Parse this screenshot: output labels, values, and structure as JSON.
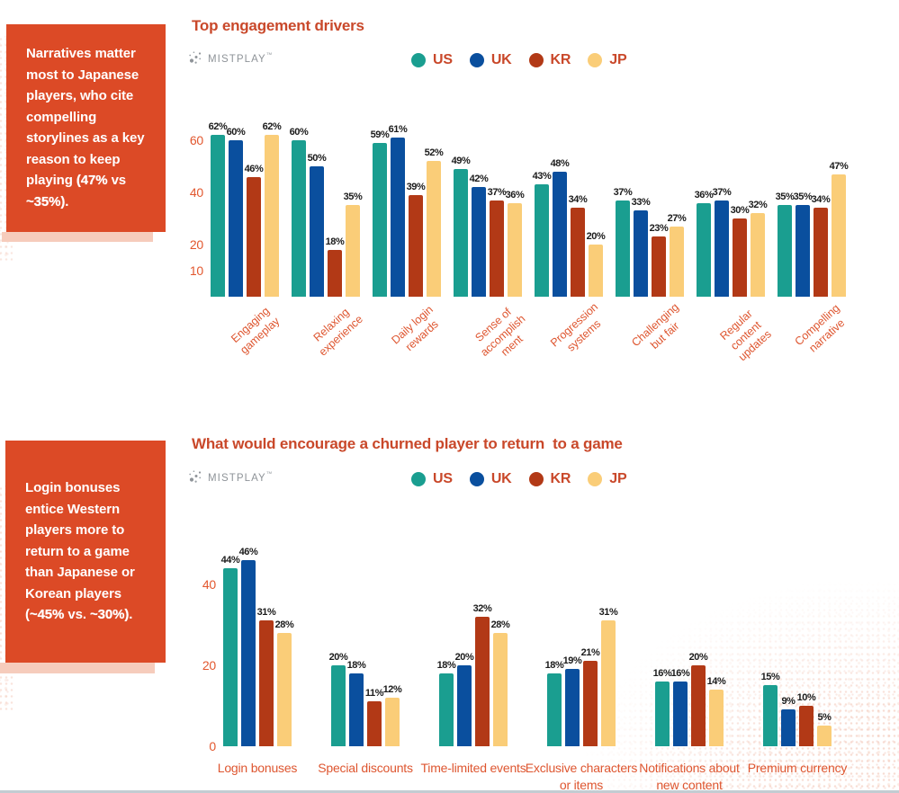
{
  "brand": {
    "name": "MISTPLAY",
    "tm": "™"
  },
  "colors": {
    "callout_bg": "#DC4A26",
    "callout_shadow": "#F6CCBC",
    "title_text": "#C9482A",
    "axis_text": "#E2572E",
    "category_text": "#DE5630",
    "value_text": "#1b1b1b",
    "us": "#1A9E90",
    "uk": "#0A4F9E",
    "kr": "#B23916",
    "jp": "#FACD78"
  },
  "legend": [
    {
      "label": "US",
      "color": "#1A9E90"
    },
    {
      "label": "UK",
      "color": "#0A4F9E"
    },
    {
      "label": "KR",
      "color": "#B23916"
    },
    {
      "label": "JP",
      "color": "#FACD78"
    }
  ],
  "callouts": [
    {
      "segments": [
        {
          "text": "Narratives matter most to Japanese players, who cite compelling storylines as a key reason to keep playing ",
          "bold": false
        },
        {
          "text": "(47%",
          "bold": true
        },
        {
          "text": " vs ",
          "bold": false
        },
        {
          "text": "~35%)",
          "bold": true
        },
        {
          "text": ".",
          "bold": false
        }
      ]
    },
    {
      "segments": [
        {
          "text": "Login bonuses entice Western players more to return to a game than Japanese or Korean players (",
          "bold": false
        },
        {
          "text": "~45%",
          "bold": true
        },
        {
          "text": " vs. ",
          "bold": false
        },
        {
          "text": "~30%)",
          "bold": true
        },
        {
          "text": ".",
          "bold": false
        }
      ]
    }
  ],
  "chart_data": [
    {
      "type": "bar",
      "title": "Top engagement drivers",
      "categories": [
        "Engaging\ngameplay",
        "Relaxing\nexperience",
        "Daily login\nrewards",
        "Sense of\naccomplish\nment",
        "Progression\nsystems",
        "Challenging\nbut fair",
        "Regular\ncontent\nupdates",
        "Compelling\nnarrative"
      ],
      "series": [
        {
          "name": "US",
          "color": "#1A9E90",
          "values": [
            62,
            60,
            59,
            49,
            43,
            37,
            36,
            35
          ]
        },
        {
          "name": "UK",
          "color": "#0A4F9E",
          "values": [
            60,
            50,
            61,
            42,
            48,
            33,
            37,
            35
          ]
        },
        {
          "name": "KR",
          "color": "#B23916",
          "values": [
            46,
            18,
            39,
            37,
            34,
            23,
            30,
            34
          ]
        },
        {
          "name": "JP",
          "color": "#FACD78",
          "values": [
            62,
            35,
            52,
            36,
            20,
            27,
            32,
            47
          ]
        }
      ],
      "value_suffix": "%",
      "yticks": [
        60,
        40,
        20,
        10
      ],
      "ylim": [
        0,
        65
      ],
      "grid": false,
      "legend_position": "top",
      "xlabel": "",
      "ylabel": ""
    },
    {
      "type": "bar",
      "title": "What would encourage a churned player to return  to a game",
      "categories": [
        "Login bonuses",
        "Special discounts",
        "Time-limited events",
        "Exclusive characters\nor items",
        "Notifications about\nnew content",
        "Premium currency"
      ],
      "series": [
        {
          "name": "US",
          "color": "#1A9E90",
          "values": [
            44,
            20,
            18,
            18,
            16,
            15
          ]
        },
        {
          "name": "UK",
          "color": "#0A4F9E",
          "values": [
            46,
            18,
            20,
            19,
            16,
            9
          ]
        },
        {
          "name": "KR",
          "color": "#B23916",
          "values": [
            31,
            11,
            32,
            21,
            20,
            10
          ]
        },
        {
          "name": "JP",
          "color": "#FACD78",
          "values": [
            28,
            12,
            28,
            31,
            14,
            5
          ]
        }
      ],
      "value_suffix": "%",
      "yticks": [
        40,
        20,
        0
      ],
      "ylim": [
        0,
        50
      ],
      "grid": false,
      "legend_position": "top",
      "xlabel": "",
      "ylabel": ""
    }
  ]
}
